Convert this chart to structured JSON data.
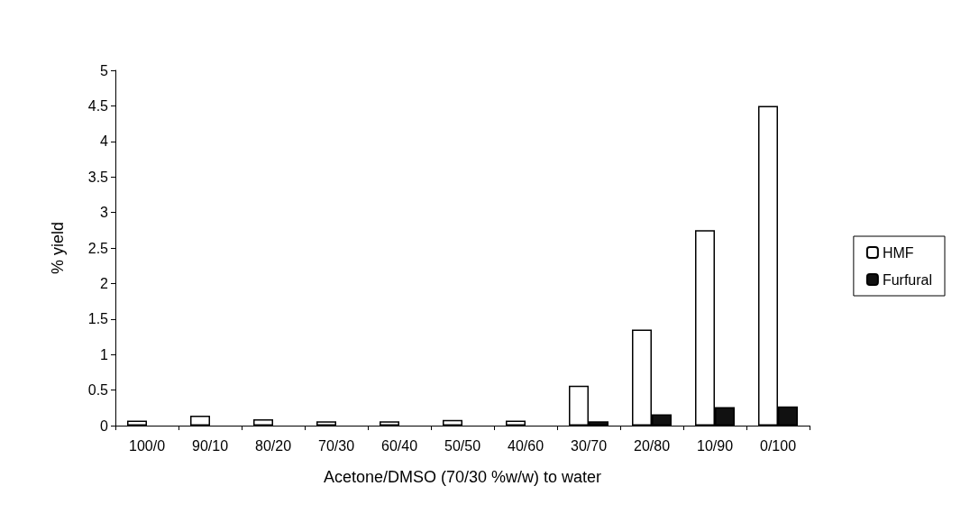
{
  "chart_data": {
    "type": "bar",
    "xlabel": "Acetone/DMSO (70/30 %w/w) to water",
    "ylabel": "% yield",
    "categories": [
      "100/0",
      "90/10",
      "80/20",
      "70/30",
      "60/40",
      "50/50",
      "40/60",
      "30/70",
      "20/80",
      "10/90",
      "0/100"
    ],
    "series": [
      {
        "name": "HMF",
        "color": "#ffffff",
        "values": [
          0.07,
          0.14,
          0.09,
          0.06,
          0.06,
          0.08,
          0.07,
          0.56,
          1.35,
          2.75,
          4.5
        ]
      },
      {
        "name": "Furfural",
        "color": "#111111",
        "values": [
          null,
          null,
          null,
          null,
          null,
          null,
          null,
          0.06,
          0.16,
          0.26,
          0.27
        ]
      }
    ],
    "ylim": [
      0,
      5
    ],
    "yticks": [
      0,
      0.5,
      1,
      1.5,
      2,
      2.5,
      3,
      3.5,
      4,
      4.5,
      5
    ],
    "grid": false,
    "legend": "right"
  }
}
